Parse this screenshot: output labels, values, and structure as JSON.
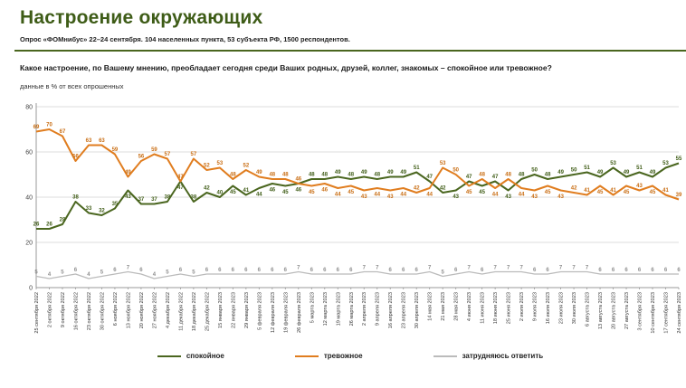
{
  "header": {
    "title": "Настроение окружающих",
    "subtitle": "Опрос «ФОМнибус» 22–24 сентября. 104 населенных пункта, 53 субъекта РФ, 1500 респондентов."
  },
  "question": "Какое настроение, по Вашему мнению, преобладает сегодня среди Ваших родных, друзей, коллег, знакомых – спокойное или тревожное?",
  "note": "данные в % от всех опрошенных",
  "colors": {
    "title_green": "#3e5c17",
    "calm_line": "#4a661f",
    "anxious_line": "#e07d1f",
    "dk_line": "#bbbbbb",
    "grid": "#dedede",
    "axis": "#999999"
  },
  "chart_data": {
    "type": "line",
    "title": "Настроение окружающих",
    "xlabel": "",
    "ylabel": "",
    "ylim": [
      0,
      80
    ],
    "yticks": [
      0,
      20,
      40,
      60,
      80
    ],
    "grid": true,
    "legend_position": "bottom",
    "units": "% от всех опрошенных",
    "categories": [
      "25 сентября 2022",
      "2 октября 2022",
      "9 октября 2022",
      "16 октября 2022",
      "23 октября 2022",
      "30 октября 2022",
      "6 ноября 2022",
      "13 ноября 2022",
      "20 ноября 2022",
      "27 ноября 2022",
      "4 декабря 2022",
      "11 декабря 2022",
      "18 декабря 2022",
      "25 декабря 2022",
      "15 января 2023",
      "22 января 2023",
      "29 января 2023",
      "5 февраля 2023",
      "12 февраля 2023",
      "19 февраля 2023",
      "26 февраля 2023",
      "5 марта 2023",
      "12 марта 2023",
      "19 марта 2023",
      "26 марта 2023",
      "2 апреля 2023",
      "9 апреля 2023",
      "16 апреля 2023",
      "23 апреля 2023",
      "30 апреля 2023",
      "14 мая 2023",
      "21 мая 2023",
      "28 мая 2023",
      "4 июня 2023",
      "11 июня 2023",
      "18 июня 2023",
      "25 июня 2023",
      "2 июля 2023",
      "9 июля 2023",
      "16 июля 2023",
      "23 июля 2023",
      "30 июля 2023",
      "6 августа 2023",
      "13 августа 2023",
      "20 августа 2023",
      "27 августа 2023",
      "3 сентября 2023",
      "10 сентября 2023",
      "17 сентября 2023",
      "24 сентября 2023"
    ],
    "series": [
      {
        "name": "спокойное",
        "key": "calm",
        "color": "#4a661f",
        "values": [
          26,
          26,
          28,
          38,
          33,
          32,
          35,
          43,
          37,
          37,
          38,
          47,
          38,
          42,
          40,
          45,
          41,
          44,
          46,
          45,
          46,
          48,
          48,
          49,
          48,
          49,
          48,
          49,
          49,
          51,
          47,
          42,
          43,
          47,
          45,
          47,
          43,
          48,
          50,
          48,
          49,
          50,
          51,
          49,
          53,
          49,
          51,
          49,
          53,
          55
        ]
      },
      {
        "name": "тревожное",
        "key": "anxious",
        "color": "#e07d1f",
        "values": [
          69,
          70,
          67,
          56,
          63,
          63,
          59,
          49,
          56,
          59,
          57,
          47,
          57,
          52,
          53,
          48,
          52,
          49,
          48,
          48,
          46,
          45,
          46,
          44,
          45,
          43,
          44,
          43,
          44,
          42,
          44,
          53,
          50,
          45,
          48,
          44,
          48,
          44,
          43,
          45,
          43,
          42,
          41,
          45,
          41,
          45,
          43,
          45,
          41,
          39
        ]
      },
      {
        "name": "затрудняюсь ответить",
        "key": "dk",
        "color": "#bbbbbb",
        "values": [
          5,
          4,
          5,
          6,
          4,
          5,
          6,
          7,
          6,
          4,
          5,
          6,
          5,
          6,
          6,
          6,
          6,
          6,
          6,
          6,
          7,
          6,
          6,
          6,
          6,
          7,
          7,
          6,
          6,
          6,
          7,
          5,
          6,
          7,
          6,
          7,
          7,
          7,
          6,
          6,
          7,
          7,
          7,
          6,
          6,
          6,
          6,
          6,
          6,
          6
        ]
      }
    ]
  }
}
